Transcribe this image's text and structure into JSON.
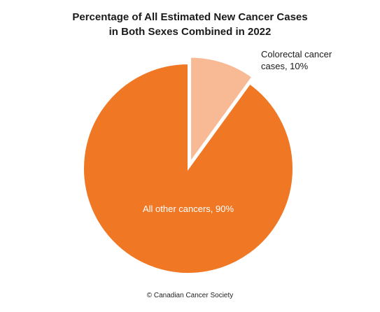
{
  "chart_data": {
    "type": "pie",
    "title_lines": [
      "Percentage of All Estimated New Cancer Cases",
      "in Both Sexes Combined in 2022"
    ],
    "slices": [
      {
        "label_lines": [
          "Colorectal cancer",
          "cases, 10%"
        ],
        "value": 10,
        "color": "#f8b995",
        "exploded": true
      },
      {
        "label_lines": [
          "All other cancers, 90%"
        ],
        "value": 90,
        "color": "#f07825",
        "exploded": false
      }
    ],
    "start": "12 o'clock",
    "direction": "clockwise",
    "legend": "none"
  },
  "footer": {
    "credit": "© Canadian Cancer Society"
  }
}
